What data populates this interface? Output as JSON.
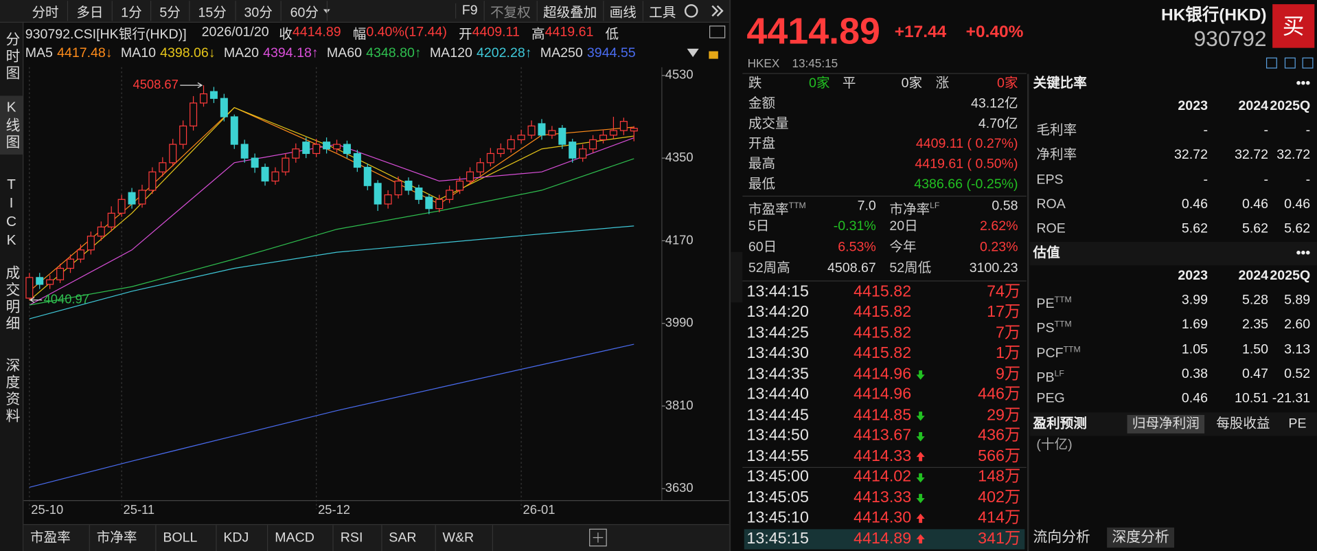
{
  "toolbar": {
    "periods": [
      "分时",
      "多日",
      "1分",
      "5分",
      "15分",
      "30分",
      "60分"
    ],
    "tools": [
      "F9",
      "不复权",
      "超级叠加",
      "画线",
      "工具"
    ]
  },
  "sidebar": [
    "分时图",
    "K线图",
    "TICK",
    "成交明细",
    "深度资料"
  ],
  "info": {
    "code": "930792.CSI[HK银行(HKD)]",
    "date": "2026/01/20",
    "value_color": "#ff3b3b",
    "items": [
      {
        "label": "收",
        "value": "4414.89"
      },
      {
        "label": "幅",
        "value": "0.40%(17.44)"
      },
      {
        "label": "开",
        "value": "4409.11"
      },
      {
        "label": "高",
        "value": "4419.61"
      },
      {
        "label": "低"
      }
    ]
  },
  "chart_data": {
    "type": "candlestick",
    "up_color": "#ff3b3b",
    "down_color": "#3cd2d2",
    "categories": [
      "25-10",
      null,
      null,
      null,
      null,
      null,
      null,
      null,
      null,
      "25-11",
      null,
      null,
      null,
      null,
      null,
      null,
      null,
      null,
      null,
      null,
      null,
      null,
      null,
      null,
      null,
      null,
      null,
      null,
      "25-12",
      null,
      null,
      null,
      null,
      null,
      null,
      null,
      null,
      null,
      null,
      null,
      null,
      null,
      null,
      null,
      null,
      null,
      null,
      null,
      "26-01",
      null,
      null,
      null,
      null,
      null,
      null,
      null,
      null,
      null,
      null,
      null
    ],
    "open": [
      4045,
      4090,
      4075,
      4085,
      4110,
      4130,
      4150,
      4180,
      4200,
      4230,
      4275,
      4250,
      4280,
      4320,
      4340,
      4380,
      4420,
      4470,
      4495,
      4480,
      4440,
      4380,
      4350,
      4330,
      4300,
      4320,
      4350,
      4385,
      4360,
      4385,
      4370,
      4380,
      4360,
      4330,
      4295,
      4250,
      4270,
      4300,
      4285,
      4265,
      4240,
      4260,
      4280,
      4300,
      4320,
      4340,
      4360,
      4370,
      4390,
      4400,
      4425,
      4400,
      4415,
      4385,
      4350,
      4370,
      4390,
      4400,
      4410,
      4409.11
    ],
    "high": [
      4100,
      4100,
      4095,
      4120,
      4140,
      4162,
      4190,
      4212,
      4245,
      4270,
      4285,
      4292,
      4330,
      4352,
      4392,
      4432,
      4485,
      4508.67,
      4505,
      4490,
      4445,
      4390,
      4360,
      4338,
      4330,
      4360,
      4382,
      4395,
      4392,
      4395,
      4390,
      4388,
      4368,
      4338,
      4302,
      4280,
      4310,
      4308,
      4292,
      4272,
      4270,
      4290,
      4310,
      4330,
      4350,
      4372,
      4382,
      4400,
      4412,
      4432,
      4435,
      4420,
      4422,
      4392,
      4380,
      4400,
      4412,
      4440,
      4438,
      4419.61
    ],
    "low": [
      4040.97,
      4065,
      4065,
      4078,
      4100,
      4122,
      4140,
      4170,
      4190,
      4222,
      4240,
      4242,
      4272,
      4310,
      4332,
      4370,
      4410,
      4462,
      4470,
      4430,
      4370,
      4340,
      4318,
      4290,
      4292,
      4312,
      4340,
      4350,
      4352,
      4360,
      4362,
      4350,
      4320,
      4280,
      4235,
      4240,
      4262,
      4270,
      4250,
      4228,
      4232,
      4252,
      4272,
      4292,
      4312,
      4332,
      4352,
      4362,
      4382,
      4392,
      4390,
      4392,
      4370,
      4340,
      4342,
      4362,
      4382,
      4392,
      4400,
      4386.66
    ],
    "close": [
      4090,
      4075,
      4085,
      4110,
      4130,
      4150,
      4180,
      4200,
      4230,
      4260,
      4250,
      4280,
      4320,
      4340,
      4380,
      4420,
      4470,
      4490,
      4480,
      4440,
      4380,
      4350,
      4330,
      4300,
      4320,
      4350,
      4370,
      4360,
      4380,
      4370,
      4380,
      4360,
      4330,
      4290,
      4250,
      4270,
      4300,
      4280,
      4260,
      4240,
      4260,
      4280,
      4300,
      4320,
      4340,
      4360,
      4370,
      4390,
      4400,
      4420,
      4400,
      4410,
      4380,
      4350,
      4370,
      4390,
      4400,
      4410,
      4430,
      4414.89
    ],
    "ylim": [
      3604,
      4548
    ],
    "yticks": [
      4530,
      4350,
      4170,
      3990,
      3810,
      3630
    ],
    "ma_x": [
      0,
      10,
      20,
      30,
      40,
      50,
      59
    ],
    "ma": [
      {
        "name": "MA5",
        "color": "#ff8c1a",
        "arrow": "↓",
        "value_label": "4417.48",
        "values": [
          4060,
          4250,
          4460,
          4360,
          4250,
          4400,
          4417.48
        ]
      },
      {
        "name": "MA10",
        "color": "#e6c619",
        "arrow": "↓",
        "value_label": "4398.06",
        "values": [
          4040,
          4230,
          4460,
          4370,
          4260,
          4370,
          4398.06
        ]
      },
      {
        "name": "MA20",
        "color": "#d94fd9",
        "arrow": "↑",
        "value_label": "4394.18",
        "values": [
          4030,
          4150,
          4340,
          4380,
          4300,
          4320,
          4394.18
        ]
      },
      {
        "name": "MA60",
        "color": "#2fbf4f",
        "arrow": "↑",
        "value_label": "4348.80",
        "values": [
          4030,
          4070,
          4130,
          4195,
          4235,
          4280,
          4348.8
        ]
      },
      {
        "name": "MA120",
        "color": "#3fc8d8",
        "arrow": "↑",
        "value_label": "4202.28",
        "values": [
          4000,
          4060,
          4110,
          4145,
          4165,
          4185,
          4202.28
        ]
      },
      {
        "name": "MA250",
        "color": "#4a6cf0",
        "value_label": "3944.55",
        "values": [
          3633,
          3690,
          3745,
          3800,
          3850,
          3900,
          3944.55
        ]
      }
    ]
  },
  "indicators": [
    "市盈率",
    "市净率",
    "BOLL",
    "KDJ",
    "MACD",
    "RSI",
    "SAR",
    "W&R"
  ],
  "quote": {
    "price": "4414.89",
    "change": "+17.44",
    "pct": "+0.40%",
    "color": "#ff3b3b",
    "name": "HK银行(HKD)",
    "code": "930792",
    "buy": "买",
    "exchange": "HKEX",
    "time": "13:45:15",
    "breadth": [
      {
        "label": "跌",
        "value": "0家",
        "color": "#22c022"
      },
      {
        "label": "平",
        "value": "0家",
        "color": "#dddddd"
      },
      {
        "label": "涨",
        "value": "0家",
        "color": "#ff3b3b"
      }
    ],
    "rows": [
      {
        "label": "金额",
        "value": "43.12亿",
        "color": "#dddddd"
      },
      {
        "label": "成交量",
        "value": "4.70亿",
        "color": "#dddddd"
      },
      {
        "label": "开盘",
        "value": "4409.11 ( 0.27%)",
        "color": "#ff3b3b"
      },
      {
        "label": "最高",
        "value": "4419.61 ( 0.50%)",
        "color": "#ff3b3b"
      },
      {
        "label": "最低",
        "value": "4386.66 (-0.25%)",
        "color": "#22c022"
      }
    ],
    "pairs": [
      [
        {
          "label": "市盈率",
          "sup": "TTM",
          "value": "7.0",
          "color": "#dddddd"
        },
        {
          "label": "市净率",
          "sup": "LF",
          "value": "0.58",
          "color": "#dddddd"
        }
      ],
      [
        {
          "label": "5日",
          "value": "-0.31%",
          "color": "#22c022"
        },
        {
          "label": "20日",
          "value": "2.62%",
          "color": "#ff3b3b"
        }
      ],
      [
        {
          "label": "60日",
          "value": "6.53%",
          "color": "#ff3b3b"
        },
        {
          "label": "今年",
          "value": "0.23%",
          "color": "#ff3b3b"
        }
      ],
      [
        {
          "label": "52周高",
          "value": "4508.67",
          "color": "#dddddd"
        },
        {
          "label": "52周低",
          "value": "3100.23",
          "color": "#dddddd"
        }
      ]
    ]
  },
  "ticks": [
    {
      "time": "13:44:15",
      "price": "4415.82",
      "volume": "74万",
      "dir": "none"
    },
    {
      "time": "13:44:20",
      "price": "4415.82",
      "volume": "17万",
      "dir": "none"
    },
    {
      "time": "13:44:25",
      "price": "4415.82",
      "volume": "7万",
      "dir": "none"
    },
    {
      "time": "13:44:30",
      "price": "4415.82",
      "volume": "1万",
      "dir": "none"
    },
    {
      "time": "13:44:35",
      "price": "4414.96",
      "volume": "9万",
      "dir": "down"
    },
    {
      "time": "13:44:40",
      "price": "4414.96",
      "volume": "446万",
      "dir": "none"
    },
    {
      "time": "13:44:45",
      "price": "4414.85",
      "volume": "29万",
      "dir": "down"
    },
    {
      "time": "13:44:50",
      "price": "4413.67",
      "volume": "436万",
      "dir": "down"
    },
    {
      "time": "13:44:55",
      "price": "4414.33",
      "volume": "566万",
      "dir": "up"
    },
    {
      "time": "13:45:00",
      "price": "4414.02",
      "volume": "148万",
      "dir": "down"
    },
    {
      "time": "13:45:05",
      "price": "4413.33",
      "volume": "402万",
      "dir": "down"
    },
    {
      "time": "13:45:10",
      "price": "4414.30",
      "volume": "414万",
      "dir": "up"
    },
    {
      "time": "13:45:15",
      "price": "4414.89",
      "volume": "341万",
      "dir": "up"
    }
  ],
  "ratios": {
    "title": "关键比率",
    "more": "•••",
    "years": [
      "2023",
      "2024",
      "2025Q"
    ],
    "rows": [
      {
        "label": "毛利率",
        "values": [
          "-",
          "-",
          "-"
        ]
      },
      {
        "label": "净利率",
        "values": [
          "32.72",
          "32.72",
          "32.72"
        ]
      },
      {
        "label": "EPS",
        "values": [
          "-",
          "-",
          "-"
        ]
      },
      {
        "label": "ROA",
        "values": [
          "0.46",
          "0.46",
          "0.46"
        ]
      },
      {
        "label": "ROE",
        "values": [
          "5.62",
          "5.62",
          "5.62"
        ]
      }
    ]
  },
  "valuation": {
    "title": "估值",
    "more": "•••",
    "years": [
      "2023",
      "2024",
      "2025Q"
    ],
    "rows": [
      {
        "label": "PE",
        "sup": "TTM",
        "values": [
          "3.99",
          "5.28",
          "5.89"
        ]
      },
      {
        "label": "PS",
        "sup": "TTM",
        "values": [
          "1.69",
          "2.35",
          "2.60"
        ]
      },
      {
        "label": "PCF",
        "sup": "TTM",
        "values": [
          "1.05",
          "1.50",
          "3.13"
        ]
      },
      {
        "label": "PB",
        "sup": "LF",
        "values": [
          "0.38",
          "0.47",
          "0.52"
        ]
      },
      {
        "label": "PEG",
        "values": [
          "0.46",
          "10.51",
          "-21.31"
        ]
      }
    ]
  },
  "forecast": {
    "title": "盈利预测",
    "tabs": [
      "归母净利润",
      "每股收益",
      "PE"
    ],
    "unit": "(十亿)"
  },
  "bottom_tabs": [
    "流向分析",
    "深度分析"
  ]
}
